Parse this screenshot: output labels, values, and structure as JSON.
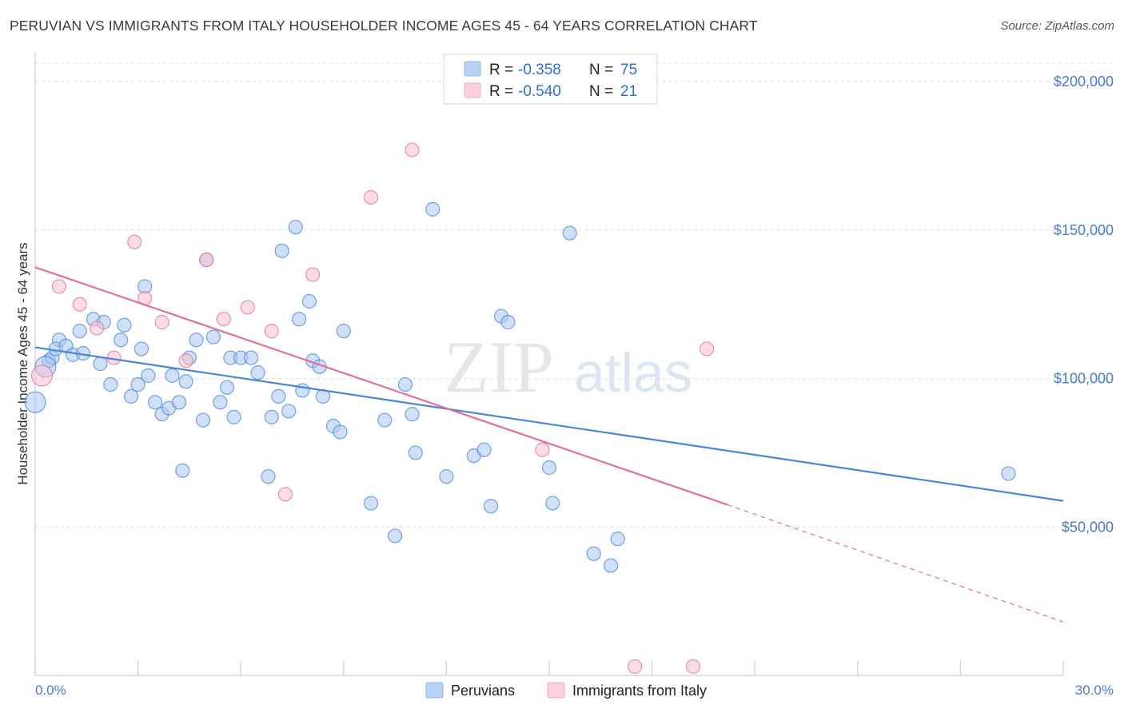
{
  "header": {
    "title": "PERUVIAN VS IMMIGRANTS FROM ITALY HOUSEHOLDER INCOME AGES 45 - 64 YEARS CORRELATION CHART",
    "source": "Source: ZipAtlas.com"
  },
  "watermark": {
    "zip": "ZIP",
    "atlas": "atlas"
  },
  "stats": [
    {
      "r_label": "R =",
      "r_value": "-0.358",
      "n_label": "N =",
      "n_value": "75",
      "color": "#8fb4e8"
    },
    {
      "r_label": "R =",
      "r_value": "-0.540",
      "n_label": "N =",
      "n_value": "21",
      "color": "#f4a9bf"
    }
  ],
  "chart_data": {
    "type": "scatter",
    "title": "PERUVIAN VS IMMIGRANTS FROM ITALY HOUSEHOLDER INCOME AGES 45 - 64 YEARS CORRELATION CHART",
    "xlabel": "",
    "ylabel": "Householder Income Ages 45 - 64 years",
    "xlim": [
      0,
      30
    ],
    "ylim": [
      0,
      210000
    ],
    "x_tick_labels": [
      "0.0%",
      "30.0%"
    ],
    "y_ticks": [
      50000,
      100000,
      150000,
      200000
    ],
    "y_tick_labels": [
      "$50,000",
      "$100,000",
      "$150,000",
      "$200,000"
    ],
    "grid": "horizontal dashed",
    "legend_position": "bottom-center",
    "series": [
      {
        "name": "Peruvians",
        "color": "#4a86d8",
        "fill": "#a9c7f0",
        "trend": {
          "x": [
            0,
            30
          ],
          "y": [
            110500,
            58800
          ]
        },
        "points": [
          [
            0.0,
            92000
          ],
          [
            0.4,
            106000
          ],
          [
            0.5,
            107000
          ],
          [
            0.7,
            113000
          ],
          [
            0.6,
            110000
          ],
          [
            0.9,
            111000
          ],
          [
            1.1,
            108000
          ],
          [
            1.4,
            108500
          ],
          [
            1.3,
            116000
          ],
          [
            1.7,
            120000
          ],
          [
            2.0,
            119000
          ],
          [
            1.9,
            105000
          ],
          [
            2.5,
            113000
          ],
          [
            2.2,
            98000
          ],
          [
            2.6,
            118000
          ],
          [
            2.8,
            94000
          ],
          [
            3.0,
            98000
          ],
          [
            3.1,
            110000
          ],
          [
            3.3,
            101000
          ],
          [
            3.5,
            92000
          ],
          [
            3.7,
            88000
          ],
          [
            3.9,
            90000
          ],
          [
            4.0,
            101000
          ],
          [
            4.2,
            92000
          ],
          [
            4.4,
            99000
          ],
          [
            4.5,
            107000
          ],
          [
            4.7,
            113000
          ],
          [
            4.9,
            86000
          ],
          [
            4.3,
            69000
          ],
          [
            5.0,
            140000
          ],
          [
            5.2,
            114000
          ],
          [
            5.4,
            92000
          ],
          [
            5.6,
            97000
          ],
          [
            5.7,
            107000
          ],
          [
            5.8,
            87000
          ],
          [
            6.0,
            107000
          ],
          [
            6.3,
            107000
          ],
          [
            6.5,
            102000
          ],
          [
            6.8,
            67000
          ],
          [
            6.9,
            87000
          ],
          [
            7.1,
            94000
          ],
          [
            7.2,
            143000
          ],
          [
            7.4,
            89000
          ],
          [
            7.6,
            151000
          ],
          [
            7.7,
            120000
          ],
          [
            7.8,
            96000
          ],
          [
            8.0,
            126000
          ],
          [
            8.1,
            106000
          ],
          [
            8.3,
            104000
          ],
          [
            8.4,
            94000
          ],
          [
            8.7,
            84000
          ],
          [
            8.9,
            82000
          ],
          [
            9.0,
            116000
          ],
          [
            3.2,
            131000
          ],
          [
            9.8,
            58000
          ],
          [
            10.2,
            86000
          ],
          [
            10.5,
            47000
          ],
          [
            10.8,
            98000
          ],
          [
            11.0,
            88000
          ],
          [
            11.1,
            75000
          ],
          [
            11.6,
            157000
          ],
          [
            12.0,
            67000
          ],
          [
            12.8,
            74000
          ],
          [
            13.1,
            76000
          ],
          [
            13.3,
            57000
          ],
          [
            13.6,
            121000
          ],
          [
            13.8,
            119000
          ],
          [
            15.0,
            70000
          ],
          [
            15.1,
            58000
          ],
          [
            15.6,
            149000
          ],
          [
            16.3,
            41000
          ],
          [
            16.8,
            37000
          ],
          [
            17.0,
            46000
          ],
          [
            28.4,
            68000
          ],
          [
            0.3,
            104000
          ]
        ]
      },
      {
        "name": "Immigrants from Italy",
        "color": "#e07098",
        "fill": "#f8bfd0",
        "trend": {
          "x": [
            0,
            20.2
          ],
          "y": [
            137500,
            57500
          ]
        },
        "trend_ext": {
          "x": [
            20.2,
            30
          ],
          "y": [
            57500,
            18000
          ]
        },
        "points": [
          [
            0.2,
            101000
          ],
          [
            0.7,
            131000
          ],
          [
            1.3,
            125000
          ],
          [
            1.8,
            117000
          ],
          [
            2.3,
            107000
          ],
          [
            2.9,
            146000
          ],
          [
            3.2,
            127000
          ],
          [
            3.7,
            119000
          ],
          [
            4.4,
            106000
          ],
          [
            5.0,
            140000
          ],
          [
            5.5,
            120000
          ],
          [
            6.2,
            124000
          ],
          [
            6.9,
            116000
          ],
          [
            7.3,
            61000
          ],
          [
            8.1,
            135000
          ],
          [
            9.8,
            161000
          ],
          [
            11.0,
            177000
          ],
          [
            14.8,
            76000
          ],
          [
            17.5,
            3000
          ],
          [
            19.2,
            3000
          ],
          [
            19.6,
            110000
          ]
        ]
      }
    ]
  },
  "legend": {
    "items": [
      {
        "label": "Peruvians",
        "color": "#8fb4e8"
      },
      {
        "label": "Immigrants from Italy",
        "color": "#f4a9bf"
      }
    ]
  }
}
